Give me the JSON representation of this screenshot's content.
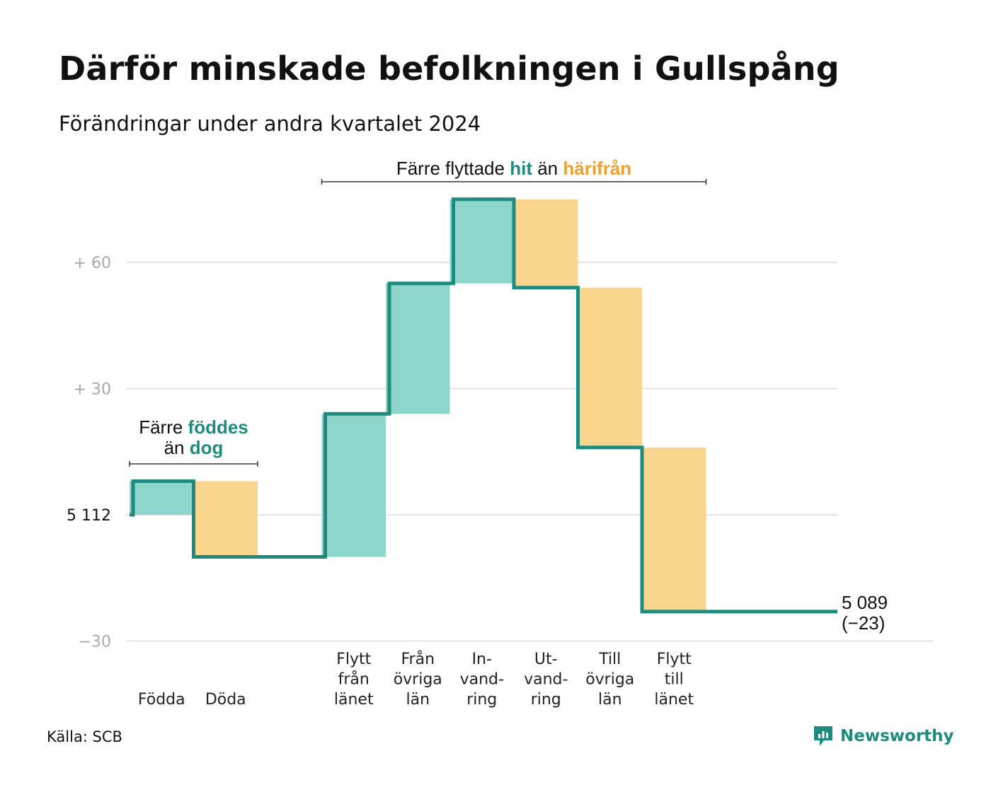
{
  "title": "Därför minskade befolkningen i Gullspång",
  "subtitle": "Förändringar under andra kvartalet 2024",
  "source": "Källa: SCB",
  "brand": "Newsworthy",
  "colors": {
    "line": "#1f8b7e",
    "inflow": "#8ed5cc",
    "outflow": "#f9d58e",
    "teal_text": "#1f8b7e",
    "orange_text": "#f0a030",
    "grid": "#e3e3e3"
  },
  "chart_data": {
    "type": "waterfall",
    "base_value": 5112,
    "end_value": 5089,
    "y_ticks": [
      {
        "value": -30,
        "label": "−30"
      },
      {
        "value": 0,
        "label": "5 112"
      },
      {
        "value": 30,
        "label": "+ 30"
      },
      {
        "value": 60,
        "label": "+ 60"
      }
    ],
    "ylim": [
      -30,
      76
    ],
    "steps": [
      {
        "label": [
          "Födda"
        ],
        "change": 8,
        "kind": "in"
      },
      {
        "label": [
          "Döda"
        ],
        "change": -18,
        "kind": "out"
      },
      {
        "label": [],
        "change": 0,
        "kind": "gap"
      },
      {
        "label": [
          "Flytt",
          "från",
          "länet"
        ],
        "change": 34,
        "kind": "in"
      },
      {
        "label": [
          "Från",
          "övriga",
          "län"
        ],
        "change": 31,
        "kind": "in"
      },
      {
        "label": [
          "In-",
          "vand-",
          "ring"
        ],
        "change": 20,
        "kind": "in"
      },
      {
        "label": [
          "Ut-",
          "vand-",
          "ring"
        ],
        "change": -21,
        "kind": "out"
      },
      {
        "label": [
          "Till",
          "övriga",
          "län"
        ],
        "change": -38,
        "kind": "out"
      },
      {
        "label": [
          "Flytt",
          "till",
          "länet"
        ],
        "change": -39,
        "kind": "out"
      }
    ],
    "end_label": [
      "5 089",
      "(−23)"
    ],
    "annotations": [
      {
        "lines": [
          [
            "Färre ",
            "föddes"
          ],
          [
            "än ",
            "dog"
          ]
        ],
        "range": [
          0,
          1
        ]
      },
      {
        "lines": [
          [
            "Färre flyttade ",
            "hit",
            " än ",
            "härifrån"
          ]
        ],
        "range": [
          3,
          8
        ]
      }
    ]
  }
}
